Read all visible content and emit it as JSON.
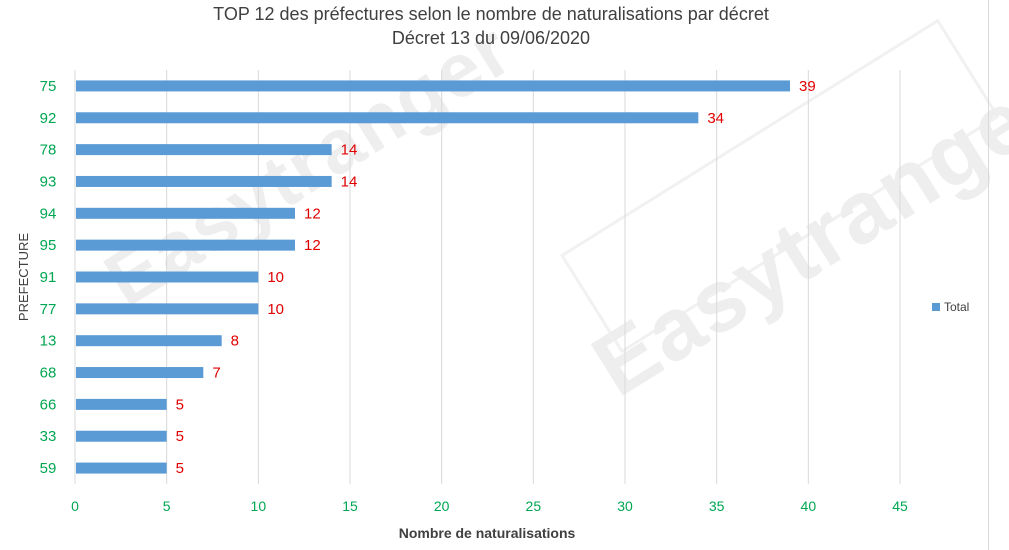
{
  "chart_data": {
    "type": "bar",
    "orientation": "horizontal",
    "title": "TOP 12 des préfectures selon le nombre de naturalisations par décret",
    "subtitle": "Décret 13 du 09/06/2020",
    "xlabel": "Nombre de naturalisations",
    "ylabel": "PREFECTURE",
    "categories": [
      "75",
      "92",
      "78",
      "93",
      "94",
      "95",
      "91",
      "77",
      "13",
      "68",
      "66",
      "33",
      "59"
    ],
    "series": [
      {
        "name": "Total",
        "values": [
          39,
          34,
          14,
          14,
          12,
          12,
          10,
          10,
          8,
          7,
          5,
          5,
          5
        ]
      }
    ],
    "x_ticks": [
      "0",
      "5",
      "10",
      "15",
      "20",
      "25",
      "30",
      "35",
      "40",
      "45"
    ],
    "xlim": [
      0,
      45
    ],
    "grid": "vertical",
    "legend_position": "right",
    "bar_color": "#5b9bd5",
    "category_label_color": "#00a651",
    "tick_label_color": "#00a651",
    "data_label_color": "#e00000"
  },
  "watermark": "Easytranger"
}
